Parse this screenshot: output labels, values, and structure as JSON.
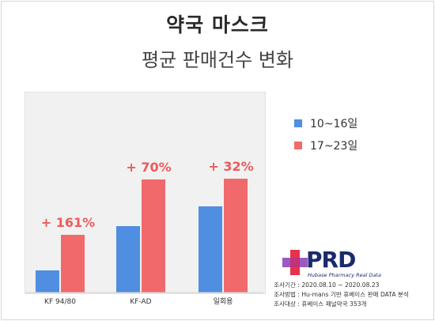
{
  "title": "약국 마스크",
  "subtitle": "평균 판매건수 변화",
  "colors": {
    "blue": "#4f8ee0",
    "red": "#f06a6c",
    "pct": "#ef5a5c"
  },
  "chart_data": {
    "type": "bar",
    "categories": [
      "KF 94/80",
      "KF-AD",
      "일회용"
    ],
    "series": [
      {
        "name": "10~16일",
        "values": [
          28,
          84,
          109
        ]
      },
      {
        "name": "17~23일",
        "values": [
          73,
          143,
          144
        ]
      }
    ],
    "annotations": [
      "+ 161%",
      "+ 70%",
      "+ 32%"
    ],
    "ylim": [
      0,
      190
    ],
    "legend": "right"
  },
  "logo": {
    "name": "PRD",
    "tagline": "Hubase Pharmacy Real Data"
  },
  "notes": [
    "조사기간 : 2020.08.10 ~ 2020.08.23",
    "조사방법 : Hu-mans 기반 휴베이스 판매 DATA 분석",
    "조사대상 : 휴베이스 패널약국 353개"
  ]
}
